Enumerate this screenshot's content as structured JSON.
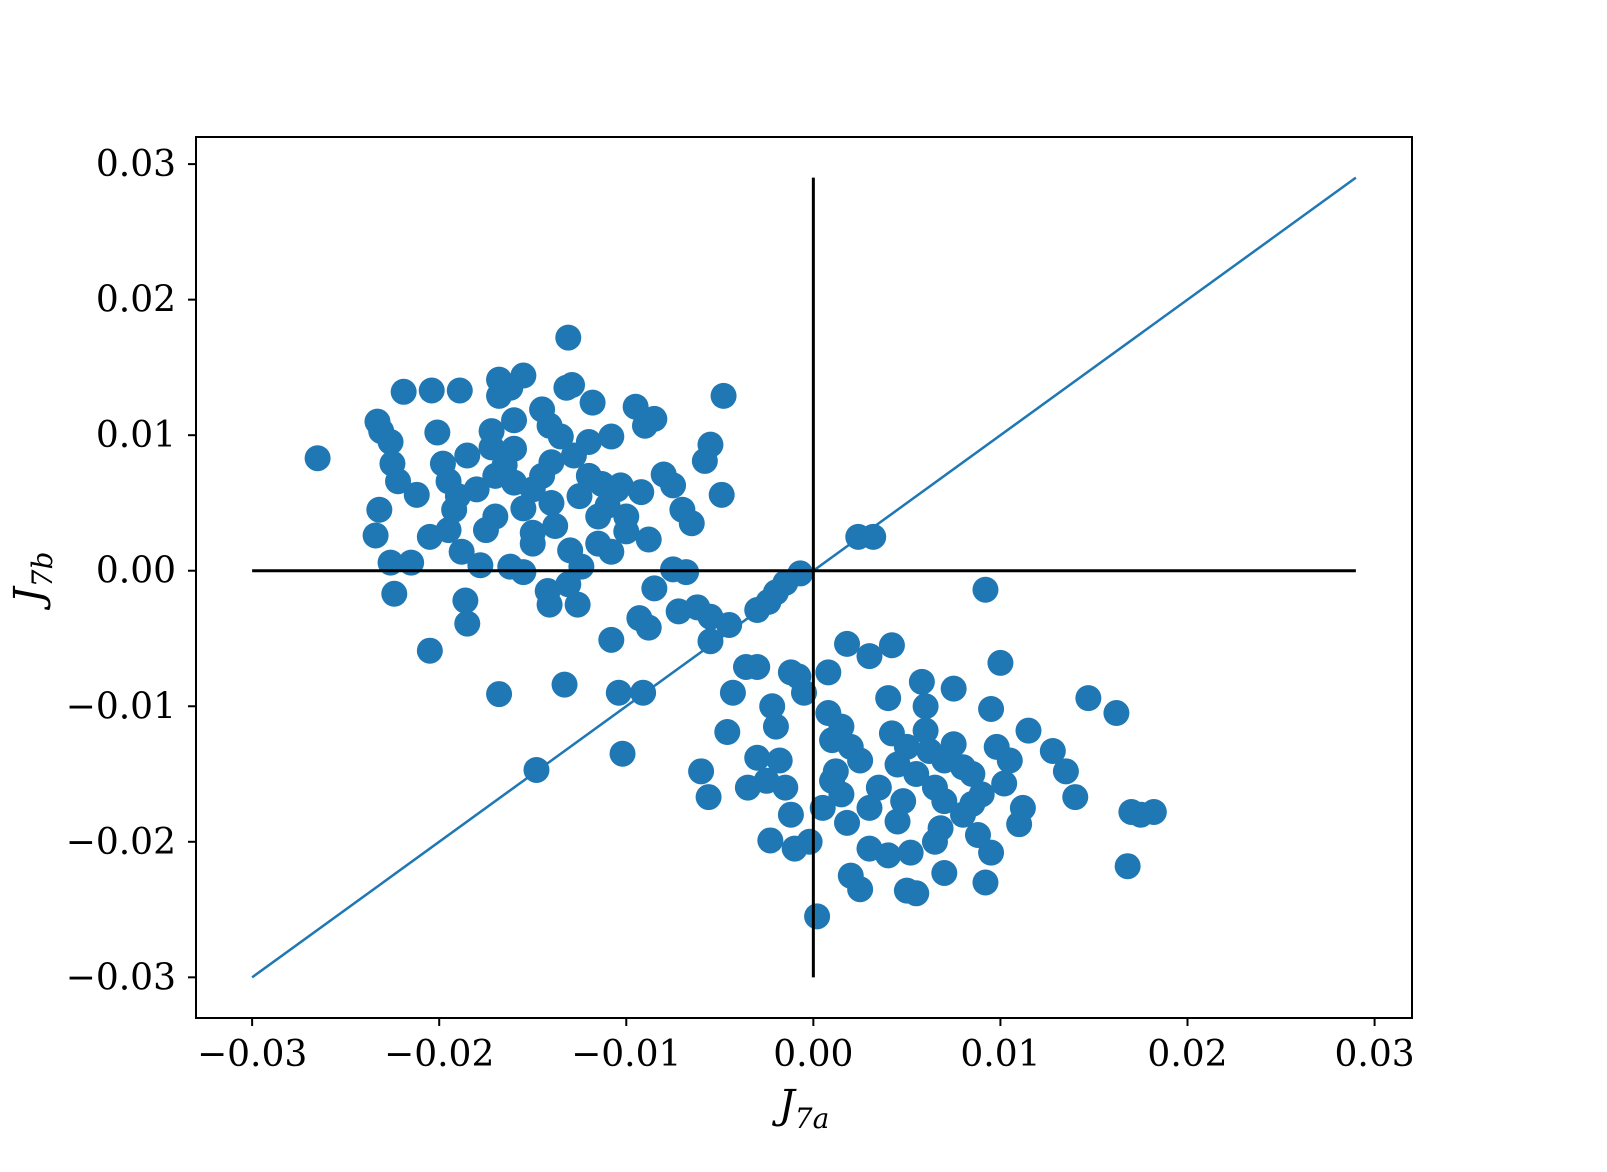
{
  "chart_data": {
    "type": "scatter",
    "title": "",
    "xlabel": {
      "base": "J",
      "sub": "7a"
    },
    "ylabel": {
      "base": "J",
      "sub": "7b"
    },
    "xlim": [
      -0.033,
      0.032
    ],
    "ylim": [
      -0.033,
      0.032
    ],
    "xticks": [
      -0.03,
      -0.02,
      -0.01,
      0.0,
      0.01,
      0.02,
      0.03
    ],
    "xtick_labels": [
      "−0.03",
      "−0.02",
      "−0.01",
      "0.00",
      "0.01",
      "0.02",
      "0.03"
    ],
    "yticks": [
      -0.03,
      -0.02,
      -0.01,
      0.0,
      0.01,
      0.02,
      0.03
    ],
    "ytick_labels": [
      "−0.03",
      "−0.02",
      "−0.01",
      "0.00",
      "0.01",
      "0.02",
      "0.03"
    ],
    "grid": false,
    "legend": "none",
    "colors": {
      "series": "#1f77b4",
      "reference": "#000000"
    },
    "reference_lines": [
      {
        "name": "diagonal",
        "color": "#1f77b4",
        "x": [
          -0.03,
          0.029
        ],
        "y": [
          -0.03,
          0.029
        ]
      },
      {
        "name": "horizontal-zero",
        "color": "#000000",
        "x": [
          -0.03,
          0.029
        ],
        "y": [
          0,
          0
        ]
      },
      {
        "name": "vertical-zero",
        "color": "#000000",
        "x": [
          0,
          0
        ],
        "y": [
          -0.03,
          0.029
        ]
      }
    ],
    "series": [
      {
        "points": [
          [
            -0.0265,
            0.0083
          ],
          [
            -0.0233,
            0.011
          ],
          [
            -0.0231,
            0.0103
          ],
          [
            -0.0226,
            0.0095
          ],
          [
            -0.0225,
            0.0079
          ],
          [
            -0.0222,
            0.0066
          ],
          [
            -0.0219,
            0.0132
          ],
          [
            -0.0232,
            0.0045
          ],
          [
            -0.0234,
            0.0026
          ],
          [
            -0.0226,
            0.0006
          ],
          [
            -0.0224,
            -0.0017
          ],
          [
            -0.0215,
            0.0006
          ],
          [
            -0.0212,
            0.0056
          ],
          [
            -0.0205,
            0.0025
          ],
          [
            -0.0204,
            0.0133
          ],
          [
            -0.0201,
            0.0102
          ],
          [
            -0.0198,
            0.0079
          ],
          [
            -0.0195,
            0.0066
          ],
          [
            -0.0192,
            0.0045
          ],
          [
            -0.0189,
            0.0133
          ],
          [
            -0.0188,
            0.0014
          ],
          [
            -0.0186,
            -0.0022
          ],
          [
            -0.0185,
            -0.0039
          ],
          [
            -0.0205,
            -0.0059
          ],
          [
            -0.0172,
            0.0103
          ],
          [
            -0.0168,
            0.0141
          ],
          [
            -0.0168,
            0.0129
          ],
          [
            -0.0162,
            0.0135
          ],
          [
            -0.0155,
            0.0144
          ],
          [
            -0.016,
            0.0111
          ],
          [
            -0.0178,
            0.0004
          ],
          [
            -0.0172,
            0.0091
          ],
          [
            -0.0165,
            0.0078
          ],
          [
            -0.016,
            0.0065
          ],
          [
            -0.0155,
            0.0046
          ],
          [
            -0.015,
            0.0028
          ],
          [
            -0.0162,
            0.0003
          ],
          [
            -0.0155,
            -0.0001
          ],
          [
            -0.0145,
            0.0119
          ],
          [
            -0.0141,
            0.0107
          ],
          [
            -0.0135,
            0.0099
          ],
          [
            -0.0131,
            0.0172
          ],
          [
            -0.0132,
            0.0135
          ],
          [
            -0.0129,
            0.0137
          ],
          [
            -0.0128,
            0.0085
          ],
          [
            -0.0138,
            0.0033
          ],
          [
            -0.0142,
            -0.0015
          ],
          [
            -0.0141,
            -0.0025
          ],
          [
            -0.0133,
            -0.0084
          ],
          [
            -0.0131,
            -0.001
          ],
          [
            -0.0126,
            -0.0025
          ],
          [
            -0.0124,
            0.0003
          ],
          [
            -0.012,
            0.0095
          ],
          [
            -0.0118,
            0.0124
          ],
          [
            -0.0113,
            0.0064
          ],
          [
            -0.011,
            0.0048
          ],
          [
            -0.0108,
            0.0099
          ],
          [
            -0.0108,
            0.0014
          ],
          [
            -0.0108,
            -0.0051
          ],
          [
            -0.0103,
            0.0063
          ],
          [
            -0.01,
            0.0029
          ],
          [
            -0.0095,
            0.0121
          ],
          [
            -0.009,
            0.0107
          ],
          [
            -0.0085,
            0.0112
          ],
          [
            -0.0092,
            0.0058
          ],
          [
            -0.0088,
            0.0023
          ],
          [
            -0.0085,
            -0.0013
          ],
          [
            -0.0093,
            -0.0035
          ],
          [
            -0.0088,
            -0.0042
          ],
          [
            -0.008,
            0.0071
          ],
          [
            -0.0075,
            0.0063
          ],
          [
            -0.007,
            0.0045
          ],
          [
            -0.0065,
            0.0035
          ],
          [
            -0.0075,
            0.0001
          ],
          [
            -0.0068,
            -0.0001
          ],
          [
            -0.0072,
            -0.003
          ],
          [
            -0.0062,
            -0.0027
          ],
          [
            -0.0058,
            0.0081
          ],
          [
            -0.0055,
            0.0093
          ],
          [
            -0.0048,
            0.0129
          ],
          [
            -0.0049,
            0.0056
          ],
          [
            -0.0055,
            -0.0034
          ],
          [
            -0.0055,
            -0.0052
          ],
          [
            -0.0045,
            -0.004
          ],
          [
            -0.0036,
            -0.0071
          ],
          [
            -0.003,
            -0.0071
          ],
          [
            -0.003,
            -0.0029
          ],
          [
            -0.0024,
            -0.0023
          ],
          [
            -0.002,
            -0.0016
          ],
          [
            -0.0015,
            -0.0009
          ],
          [
            -0.0007,
            -0.0002
          ],
          [
            -0.0104,
            -0.009
          ],
          [
            -0.0091,
            -0.009
          ],
          [
            -0.0102,
            -0.0135
          ],
          [
            -0.0168,
            -0.0091
          ],
          [
            -0.0148,
            -0.0147
          ],
          [
            -0.006,
            -0.0148
          ],
          [
            -0.0056,
            -0.0167
          ],
          [
            -0.0046,
            -0.0119
          ],
          [
            -0.0043,
            -0.009
          ],
          [
            -0.017,
            0.007
          ],
          [
            -0.018,
            0.006
          ],
          [
            -0.019,
            0.0055
          ],
          [
            -0.015,
            0.006
          ],
          [
            -0.014,
            0.005
          ],
          [
            -0.0125,
            0.0055
          ],
          [
            -0.0115,
            0.004
          ],
          [
            -0.01,
            0.004
          ],
          [
            -0.017,
            0.004
          ],
          [
            -0.0185,
            0.0085
          ],
          [
            -0.016,
            0.009
          ],
          [
            -0.014,
            0.008
          ],
          [
            -0.012,
            0.007
          ],
          [
            -0.0105,
            0.006
          ],
          [
            -0.0175,
            0.003
          ],
          [
            -0.015,
            0.002
          ],
          [
            -0.013,
            0.0015
          ],
          [
            -0.0115,
            0.002
          ],
          [
            -0.0195,
            0.003
          ],
          [
            -0.0145,
            0.007
          ],
          [
            0.0024,
            0.0025
          ],
          [
            0.0032,
            0.0025
          ],
          [
            0.0092,
            -0.0014
          ],
          [
            0.01,
            -0.0068
          ],
          [
            0.0147,
            -0.0094
          ],
          [
            0.0162,
            -0.0105
          ],
          [
            0.017,
            -0.0178
          ],
          [
            0.0175,
            -0.018
          ],
          [
            0.0182,
            -0.0178
          ],
          [
            0.0168,
            -0.0218
          ],
          [
            0.014,
            -0.0167
          ],
          [
            0.0135,
            -0.0148
          ],
          [
            0.0128,
            -0.0133
          ],
          [
            0.0115,
            -0.0118
          ],
          [
            0.0112,
            -0.0175
          ],
          [
            0.011,
            -0.0187
          ],
          [
            0.0102,
            -0.0157
          ],
          [
            0.0098,
            -0.013
          ],
          [
            0.0095,
            -0.0102
          ],
          [
            0.0092,
            -0.023
          ],
          [
            0.0095,
            -0.0208
          ],
          [
            0.0088,
            -0.0195
          ],
          [
            0.0085,
            -0.0172
          ],
          [
            0.008,
            -0.0145
          ],
          [
            0.0075,
            -0.0128
          ],
          [
            0.0075,
            -0.0087
          ],
          [
            0.007,
            -0.0223
          ],
          [
            0.0068,
            -0.019
          ],
          [
            0.0065,
            -0.016
          ],
          [
            0.0062,
            -0.0133
          ],
          [
            0.006,
            -0.01
          ],
          [
            0.0058,
            -0.0082
          ],
          [
            0.0055,
            -0.0238
          ],
          [
            0.005,
            -0.0236
          ],
          [
            0.0052,
            -0.0208
          ],
          [
            0.0048,
            -0.017
          ],
          [
            0.0045,
            -0.0143
          ],
          [
            0.0042,
            -0.012
          ],
          [
            0.004,
            -0.0094
          ],
          [
            0.0042,
            -0.0055
          ],
          [
            0.003,
            -0.0063
          ],
          [
            0.0018,
            -0.0054
          ],
          [
            0.004,
            -0.021
          ],
          [
            0.003,
            -0.0205
          ],
          [
            0.0025,
            -0.0235
          ],
          [
            0.002,
            -0.0225
          ],
          [
            0.0018,
            -0.0186
          ],
          [
            0.0015,
            -0.0165
          ],
          [
            0.0012,
            -0.0148
          ],
          [
            0.001,
            -0.0125
          ],
          [
            0.0008,
            -0.0105
          ],
          [
            0.0008,
            -0.0075
          ],
          [
            0.0002,
            -0.0255
          ],
          [
            -0.0002,
            -0.02
          ],
          [
            -0.001,
            -0.0205
          ],
          [
            -0.0012,
            -0.018
          ],
          [
            -0.0015,
            -0.016
          ],
          [
            -0.0018,
            -0.014
          ],
          [
            -0.002,
            -0.0115
          ],
          [
            -0.0022,
            -0.01
          ],
          [
            -0.0025,
            -0.0155
          ],
          [
            -0.003,
            -0.0138
          ],
          [
            -0.0035,
            -0.016
          ],
          [
            -0.0005,
            -0.009
          ],
          [
            -0.0008,
            -0.0078
          ],
          [
            -0.0012,
            -0.0075
          ],
          [
            -0.0023,
            -0.0199
          ],
          [
            0.0005,
            -0.0175
          ],
          [
            0.0035,
            -0.016
          ],
          [
            0.0055,
            -0.015
          ],
          [
            0.007,
            -0.017
          ],
          [
            0.0085,
            -0.015
          ],
          [
            0.006,
            -0.0118
          ],
          [
            0.0025,
            -0.014
          ],
          [
            0.0015,
            -0.0115
          ],
          [
            0.0045,
            -0.0185
          ],
          [
            0.0065,
            -0.02
          ],
          [
            0.008,
            -0.018
          ],
          [
            0.003,
            -0.0175
          ],
          [
            0.005,
            -0.013
          ],
          [
            0.002,
            -0.013
          ],
          [
            0.001,
            -0.0155
          ],
          [
            0.009,
            -0.0165
          ],
          [
            0.0105,
            -0.014
          ],
          [
            0.007,
            -0.014
          ]
        ]
      }
    ]
  }
}
